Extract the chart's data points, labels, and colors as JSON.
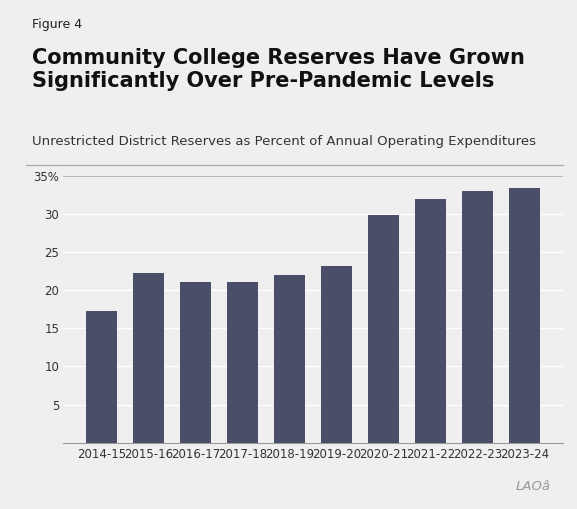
{
  "figure_label": "Figure 4",
  "title_line1": "Community College Reserves Have Grown",
  "title_line2": "Significantly Over Pre-Pandemic Levels",
  "subtitle": "Unrestricted District Reserves as Percent of Annual Operating Expenditures",
  "categories": [
    "2014-15",
    "2015-16",
    "2016-17",
    "2017-18",
    "2018-19",
    "2019-20",
    "2020-21",
    "2021-22",
    "2022-23",
    "2023-24"
  ],
  "values": [
    17.3,
    22.3,
    21.1,
    21.1,
    22.0,
    23.2,
    29.9,
    32.0,
    33.0,
    33.4
  ],
  "bar_color": "#4a4e69",
  "background_color": "#efefef",
  "ylim": [
    0,
    35
  ],
  "yticks": [
    5,
    10,
    15,
    20,
    25,
    30,
    35
  ],
  "ytick_labels": [
    "5",
    "10",
    "15",
    "20",
    "25",
    "30",
    "35%"
  ],
  "figure_label_fontsize": 9,
  "title_fontsize": 15,
  "subtitle_fontsize": 9.5,
  "axis_fontsize": 8.5
}
